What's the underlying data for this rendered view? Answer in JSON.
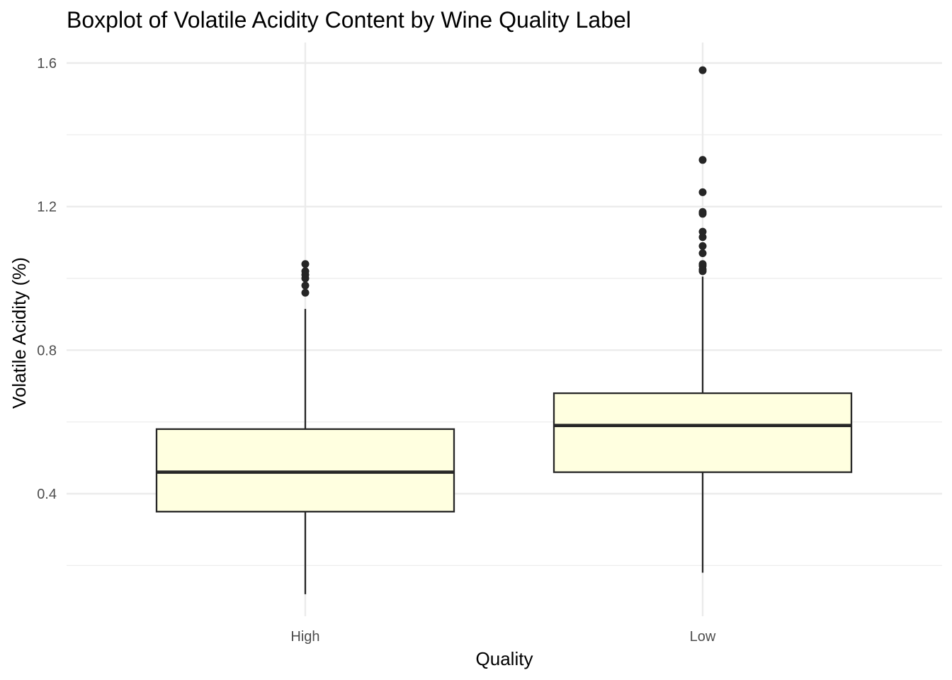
{
  "chart_data": {
    "type": "boxplot",
    "title": "Boxplot of Volatile Acidity Content by Wine Quality Label",
    "xlabel": "Quality",
    "ylabel": "Volatile Acidity (%)",
    "categories": [
      "High",
      "Low"
    ],
    "ylim": [
      0.12,
      1.65
    ],
    "yticks": [
      {
        "value": 0.4,
        "label": "0.4"
      },
      {
        "value": 0.8,
        "label": "0.8"
      },
      {
        "value": 1.2,
        "label": "1.2"
      },
      {
        "value": 1.6,
        "label": "1.6"
      }
    ],
    "y_minor_gridlines": [
      0.2,
      0.6,
      1.0,
      1.4
    ],
    "grid": true,
    "box_fill": "#FFFFE0",
    "line_color": "#262626",
    "gridline_color": "#ebebeb",
    "boxes": [
      {
        "category": "High",
        "min": 0.12,
        "q1": 0.35,
        "median": 0.46,
        "q3": 0.58,
        "max": 0.915,
        "outliers": [
          0.96,
          0.98,
          1.0,
          1.01,
          1.02,
          1.04
        ]
      },
      {
        "category": "Low",
        "min": 0.18,
        "q1": 0.46,
        "median": 0.59,
        "q3": 0.68,
        "max": 1.005,
        "outliers": [
          1.02,
          1.025,
          1.035,
          1.04,
          1.07,
          1.09,
          1.115,
          1.13,
          1.18,
          1.185,
          1.24,
          1.33,
          1.58
        ]
      }
    ]
  }
}
